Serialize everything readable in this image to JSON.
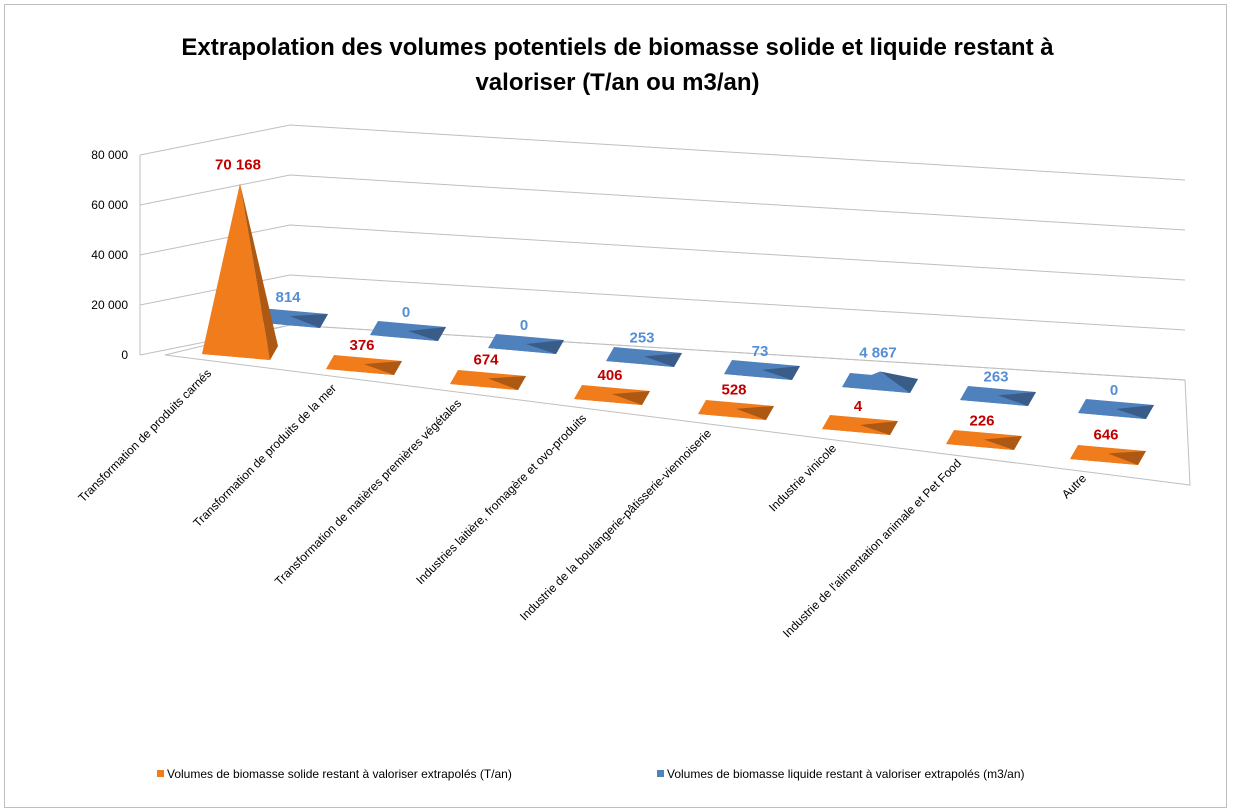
{
  "chart_data": {
    "type": "pyramid3d",
    "title": "Extrapolation des volumes potentiels de biomasse solide et liquide restant à valoriser (T/an ou m3/an)",
    "categories": [
      "Transformation de produits carnés",
      "Transformation de produits de la mer",
      "Transformation de matières premières végétales",
      "Industries laitière, fromagère et ovo-produits",
      "Industrie de la boulangerie-pâtisserie-viennoiserie",
      "Industrie vinicole",
      "Industrie de l'alimentation  animale et Pet Food",
      "Autre"
    ],
    "series": [
      {
        "name": "Volumes de biomasse solide restant à valoriser extrapolés (T/an)",
        "color": "#f07c1c",
        "label_color": "#c00000",
        "values": [
          70168,
          376,
          674,
          406,
          528,
          4,
          226,
          646
        ],
        "value_labels": [
          "70 168",
          "376",
          "674",
          "406",
          "528",
          "4",
          "226",
          "646"
        ]
      },
      {
        "name": "Volumes de biomasse liquide restant à valoriser extrapolés (m3/an)",
        "color": "#4f81bd",
        "label_color": "#558ed5",
        "values": [
          814,
          0,
          0,
          253,
          73,
          4867,
          263,
          0
        ],
        "value_labels": [
          "814",
          "0",
          "0",
          "253",
          "73",
          "4 867",
          "263",
          "0"
        ]
      }
    ],
    "ylim": [
      0,
      80000
    ],
    "yticks": [
      0,
      {
        "value": 20000,
        "label": "20 000"
      },
      {
        "value": 40000,
        "label": "40 000"
      },
      {
        "value": 60000,
        "label": "60 000"
      },
      {
        "value": 80000,
        "label": "80 000"
      }
    ],
    "grid": true,
    "legend": "bottom"
  }
}
